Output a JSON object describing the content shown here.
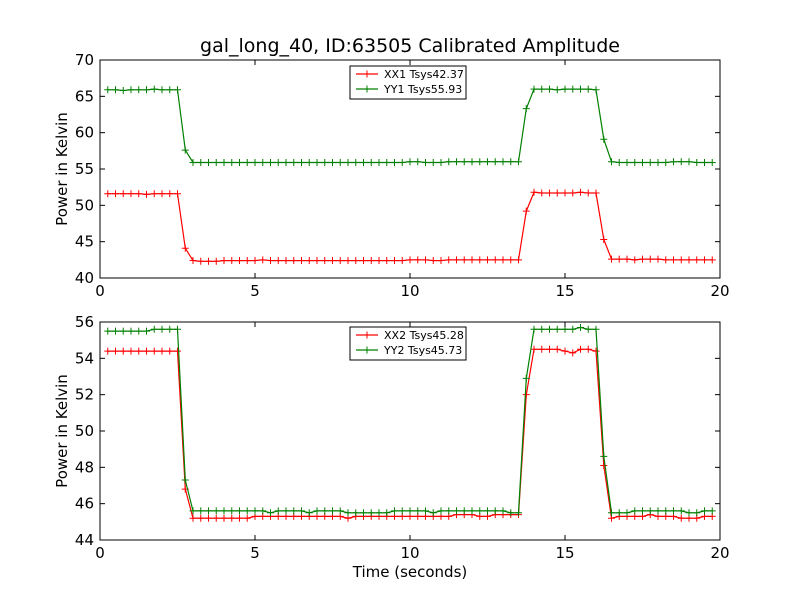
{
  "chart_data": [
    {
      "type": "line",
      "title": "gal_long_40, ID:63505 Calibrated Amplitude",
      "xlabel": "",
      "ylabel": "Power in Kelvin",
      "xlim": [
        0,
        20
      ],
      "ylim": [
        40,
        70
      ],
      "xticks": [
        "0",
        "5",
        "10",
        "15",
        "20"
      ],
      "yticks": [
        "40",
        "45",
        "50",
        "55",
        "60",
        "65",
        "70"
      ],
      "legend_position": "top-center",
      "grid": false,
      "x": [
        0.25,
        0.5,
        0.75,
        1.0,
        1.25,
        1.5,
        1.75,
        2.0,
        2.25,
        2.5,
        2.75,
        3.0,
        3.25,
        3.5,
        3.75,
        4.0,
        4.25,
        4.5,
        4.75,
        5.0,
        5.25,
        5.5,
        5.75,
        6.0,
        6.25,
        6.5,
        6.75,
        7.0,
        7.25,
        7.5,
        7.75,
        8.0,
        8.25,
        8.5,
        8.75,
        9.0,
        9.25,
        9.5,
        9.75,
        10.0,
        10.25,
        10.5,
        10.75,
        11.0,
        11.25,
        11.5,
        11.75,
        12.0,
        12.25,
        12.5,
        12.75,
        13.0,
        13.25,
        13.5,
        13.75,
        14.0,
        14.25,
        14.5,
        14.75,
        15.0,
        15.25,
        15.5,
        15.75,
        16.0,
        16.25,
        16.5,
        16.75,
        17.0,
        17.25,
        17.5,
        17.75,
        18.0,
        18.25,
        18.5,
        18.75,
        19.0,
        19.25,
        19.5,
        19.75
      ],
      "series": [
        {
          "name": "XX1 Tsys42.37",
          "color": "#ff0000",
          "values": [
            51.6,
            51.6,
            51.6,
            51.6,
            51.6,
            51.5,
            51.6,
            51.6,
            51.6,
            51.6,
            44.1,
            42.4,
            42.3,
            42.3,
            42.3,
            42.4,
            42.4,
            42.4,
            42.4,
            42.4,
            42.5,
            42.4,
            42.4,
            42.4,
            42.4,
            42.4,
            42.4,
            42.4,
            42.4,
            42.4,
            42.4,
            42.4,
            42.4,
            42.4,
            42.4,
            42.4,
            42.4,
            42.4,
            42.4,
            42.5,
            42.5,
            42.5,
            42.4,
            42.4,
            42.5,
            42.5,
            42.5,
            42.5,
            42.5,
            42.5,
            42.5,
            42.5,
            42.5,
            42.5,
            49.2,
            51.8,
            51.7,
            51.7,
            51.7,
            51.7,
            51.7,
            51.8,
            51.7,
            51.7,
            45.3,
            42.6,
            42.6,
            42.6,
            42.5,
            42.6,
            42.6,
            42.6,
            42.5,
            42.5,
            42.5,
            42.5,
            42.5,
            42.5,
            42.5
          ]
        },
        {
          "name": "YY1 Tsys55.93",
          "color": "#008000",
          "values": [
            65.9,
            65.9,
            65.8,
            65.9,
            65.9,
            65.9,
            66.0,
            65.9,
            65.9,
            65.9,
            57.6,
            55.9,
            55.9,
            55.9,
            55.9,
            55.9,
            55.9,
            55.9,
            55.9,
            55.9,
            55.9,
            55.9,
            55.9,
            55.9,
            55.9,
            55.9,
            55.9,
            55.9,
            55.9,
            55.9,
            55.9,
            55.9,
            55.9,
            55.9,
            55.9,
            55.9,
            55.9,
            55.9,
            55.9,
            56.0,
            56.0,
            55.9,
            55.9,
            55.9,
            56.0,
            56.0,
            56.0,
            56.0,
            56.0,
            56.0,
            56.0,
            56.0,
            56.0,
            56.0,
            63.3,
            66.0,
            66.0,
            66.0,
            65.9,
            66.0,
            66.0,
            66.0,
            66.0,
            65.9,
            59.1,
            56.0,
            55.9,
            55.9,
            55.9,
            55.9,
            55.9,
            55.9,
            55.9,
            56.0,
            56.0,
            56.0,
            55.9,
            55.9,
            55.9
          ]
        }
      ]
    },
    {
      "type": "line",
      "title": "",
      "xlabel": "Time (seconds)",
      "ylabel": "Power in Kelvin",
      "xlim": [
        0,
        20
      ],
      "ylim": [
        44,
        56
      ],
      "xticks": [
        "0",
        "5",
        "10",
        "15",
        "20"
      ],
      "yticks": [
        "44",
        "46",
        "48",
        "50",
        "52",
        "54",
        "56"
      ],
      "legend_position": "top-center",
      "grid": false,
      "x": [
        0.25,
        0.5,
        0.75,
        1.0,
        1.25,
        1.5,
        1.75,
        2.0,
        2.25,
        2.5,
        2.75,
        3.0,
        3.25,
        3.5,
        3.75,
        4.0,
        4.25,
        4.5,
        4.75,
        5.0,
        5.25,
        5.5,
        5.75,
        6.0,
        6.25,
        6.5,
        6.75,
        7.0,
        7.25,
        7.5,
        7.75,
        8.0,
        8.25,
        8.5,
        8.75,
        9.0,
        9.25,
        9.5,
        9.75,
        10.0,
        10.25,
        10.5,
        10.75,
        11.0,
        11.25,
        11.5,
        11.75,
        12.0,
        12.25,
        12.5,
        12.75,
        13.0,
        13.25,
        13.5,
        13.75,
        14.0,
        14.25,
        14.5,
        14.75,
        15.0,
        15.25,
        15.5,
        15.75,
        16.0,
        16.25,
        16.5,
        16.75,
        17.0,
        17.25,
        17.5,
        17.75,
        18.0,
        18.25,
        18.5,
        18.75,
        19.0,
        19.25,
        19.5,
        19.75
      ],
      "series": [
        {
          "name": "XX2 Tsys45.28",
          "color": "#ff0000",
          "values": [
            54.4,
            54.4,
            54.4,
            54.4,
            54.4,
            54.4,
            54.4,
            54.4,
            54.4,
            54.4,
            46.8,
            45.2,
            45.2,
            45.2,
            45.2,
            45.2,
            45.2,
            45.2,
            45.2,
            45.3,
            45.3,
            45.3,
            45.3,
            45.3,
            45.3,
            45.3,
            45.3,
            45.3,
            45.3,
            45.3,
            45.3,
            45.2,
            45.3,
            45.3,
            45.3,
            45.3,
            45.3,
            45.3,
            45.3,
            45.3,
            45.3,
            45.3,
            45.3,
            45.3,
            45.3,
            45.4,
            45.4,
            45.4,
            45.3,
            45.3,
            45.4,
            45.4,
            45.4,
            45.4,
            52.0,
            54.5,
            54.5,
            54.5,
            54.5,
            54.4,
            54.3,
            54.5,
            54.5,
            54.4,
            48.1,
            45.2,
            45.3,
            45.3,
            45.3,
            45.3,
            45.4,
            45.3,
            45.3,
            45.3,
            45.2,
            45.2,
            45.2,
            45.3,
            45.3
          ]
        },
        {
          "name": "YY2 Tsys45.73",
          "color": "#008000",
          "values": [
            55.5,
            55.5,
            55.5,
            55.5,
            55.5,
            55.5,
            55.6,
            55.6,
            55.6,
            55.6,
            47.3,
            45.6,
            45.6,
            45.6,
            45.6,
            45.6,
            45.6,
            45.6,
            45.6,
            45.6,
            45.6,
            45.5,
            45.6,
            45.6,
            45.6,
            45.6,
            45.5,
            45.6,
            45.6,
            45.6,
            45.6,
            45.5,
            45.5,
            45.5,
            45.5,
            45.5,
            45.5,
            45.6,
            45.6,
            45.6,
            45.6,
            45.6,
            45.5,
            45.6,
            45.6,
            45.6,
            45.6,
            45.6,
            45.6,
            45.6,
            45.6,
            45.6,
            45.5,
            45.5,
            52.9,
            55.6,
            55.6,
            55.6,
            55.6,
            55.6,
            55.6,
            55.7,
            55.6,
            55.6,
            48.6,
            45.5,
            45.5,
            45.5,
            45.6,
            45.6,
            45.6,
            45.6,
            45.6,
            45.6,
            45.6,
            45.5,
            45.5,
            45.6,
            45.6
          ]
        }
      ]
    }
  ]
}
